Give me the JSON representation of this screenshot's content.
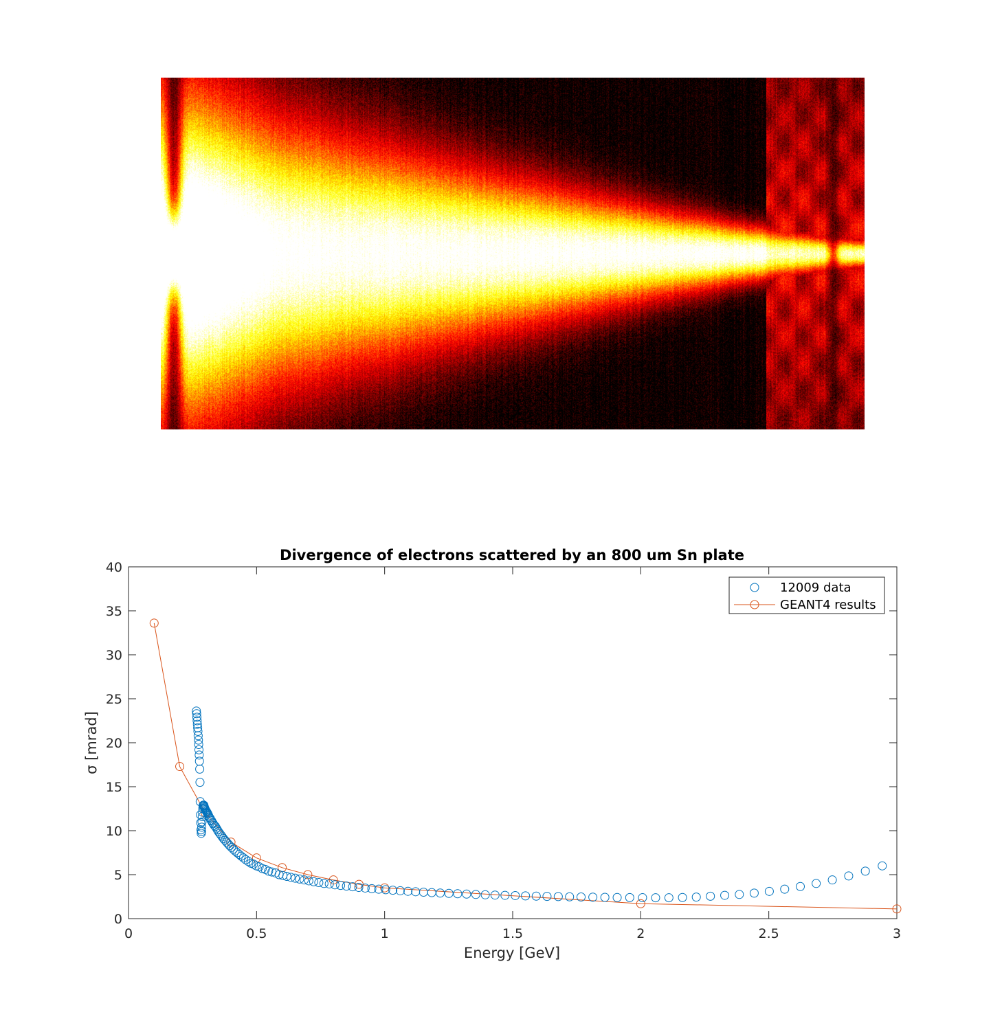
{
  "chart_data": [
    {
      "type": "heatmap",
      "colormap": "hot",
      "colorbar": false,
      "axes_visible": false,
      "description_profile": {
        "core_half_width_start": 0.42,
        "core_half_width_end": 0.035,
        "dark_band_centers": [
          0.018,
          0.955
        ],
        "fringe_region_start": 0.86
      }
    },
    {
      "type": "scatter",
      "title": "Divergence of electrons scattered by an 800 um Sn plate",
      "xlabel": "Energy [GeV]",
      "ylabel": "σ [mrad]",
      "xlim": [
        0,
        3
      ],
      "ylim": [
        0,
        40
      ],
      "xticks": [
        0,
        0.5,
        1,
        1.5,
        2,
        2.5,
        3
      ],
      "xtick_labels": [
        "0",
        "0.5",
        "1",
        "1.5",
        "2",
        "2.5",
        "3"
      ],
      "yticks": [
        0,
        5,
        10,
        15,
        20,
        25,
        30,
        35,
        40
      ],
      "ytick_labels": [
        "0",
        "5",
        "10",
        "15",
        "20",
        "25",
        "30",
        "35",
        "40"
      ],
      "grid": false,
      "box": true,
      "legend_position": "top-right",
      "series": [
        {
          "name": "12009 data",
          "style": "markers",
          "marker": "circle",
          "color": "#0072BD",
          "x": [
            0.265,
            0.266,
            0.267,
            0.268,
            0.269,
            0.27,
            0.271,
            0.272,
            0.273,
            0.274,
            0.275,
            0.276,
            0.277,
            0.278,
            0.279,
            0.28,
            0.281,
            0.282,
            0.283,
            0.284,
            0.285,
            0.286,
            0.287,
            0.288,
            0.289,
            0.29,
            0.291,
            0.292,
            0.293,
            0.294,
            0.295,
            0.296,
            0.297,
            0.298,
            0.3,
            0.302,
            0.304,
            0.306,
            0.308,
            0.31,
            0.313,
            0.316,
            0.319,
            0.322,
            0.325,
            0.328,
            0.331,
            0.335,
            0.339,
            0.343,
            0.347,
            0.351,
            0.356,
            0.361,
            0.366,
            0.371,
            0.377,
            0.383,
            0.389,
            0.395,
            0.402,
            0.409,
            0.416,
            0.424,
            0.432,
            0.44,
            0.449,
            0.458,
            0.468,
            0.478,
            0.488,
            0.499,
            0.51,
            0.522,
            0.534,
            0.547,
            0.56,
            0.574,
            0.588,
            0.603,
            0.618,
            0.634,
            0.651,
            0.668,
            0.686,
            0.704,
            0.723,
            0.743,
            0.763,
            0.784,
            0.806,
            0.828,
            0.851,
            0.875,
            0.899,
            0.924,
            0.95,
            0.977,
            1.004,
            1.032,
            1.061,
            1.091,
            1.121,
            1.152,
            1.184,
            1.217,
            1.251,
            1.285,
            1.32,
            1.356,
            1.393,
            1.431,
            1.47,
            1.51,
            1.55,
            1.592,
            1.634,
            1.678,
            1.722,
            1.767,
            1.813,
            1.86,
            1.908,
            1.957,
            2.007,
            2.058,
            2.11,
            2.163,
            2.217,
            2.272,
            2.328,
            2.385,
            2.443,
            2.502,
            2.562,
            2.623,
            2.685,
            2.748,
            2.812,
            2.877,
            2.943
          ],
          "y": [
            23.6,
            23.3,
            22.9,
            22.5,
            22.1,
            21.7,
            21.3,
            20.8,
            20.3,
            19.8,
            19.2,
            18.6,
            17.9,
            17.0,
            15.5,
            13.3,
            11.8,
            10.9,
            10.1,
            9.7,
            9.9,
            10.4,
            11.0,
            11.6,
            12.1,
            12.5,
            12.8,
            12.9,
            12.9,
            12.9,
            12.8,
            12.7,
            12.6,
            12.5,
            12.4,
            12.3,
            12.2,
            12.1,
            12.0,
            11.9,
            11.7,
            11.5,
            11.4,
            11.2,
            11.1,
            10.9,
            10.8,
            10.6,
            10.5,
            10.3,
            10.1,
            9.9,
            9.7,
            9.5,
            9.3,
            9.1,
            8.9,
            8.7,
            8.5,
            8.3,
            8.1,
            7.9,
            7.7,
            7.5,
            7.3,
            7.1,
            6.9,
            6.7,
            6.5,
            6.3,
            6.2,
            6.0,
            5.9,
            5.7,
            5.6,
            5.4,
            5.3,
            5.2,
            5.0,
            4.9,
            4.8,
            4.7,
            4.6,
            4.5,
            4.4,
            4.3,
            4.2,
            4.1,
            4.0,
            3.95,
            3.85,
            3.78,
            3.7,
            3.62,
            3.55,
            3.48,
            3.41,
            3.35,
            3.29,
            3.23,
            3.17,
            3.11,
            3.06,
            3.01,
            2.96,
            2.91,
            2.87,
            2.83,
            2.79,
            2.75,
            2.71,
            2.68,
            2.65,
            2.62,
            2.59,
            2.56,
            2.53,
            2.51,
            2.48,
            2.46,
            2.44,
            2.42,
            2.4,
            2.39,
            2.38,
            2.37,
            2.37,
            2.4,
            2.45,
            2.55,
            2.65,
            2.75,
            2.9,
            3.1,
            3.35,
            3.65,
            4.0,
            4.4,
            4.85,
            5.4,
            6.0
          ]
        },
        {
          "name": "GEANT4 results",
          "style": "line-markers",
          "marker": "circle",
          "color": "#D95319",
          "x": [
            0.1,
            0.2,
            0.3,
            0.4,
            0.5,
            0.6,
            0.7,
            0.8,
            0.9,
            1.0,
            2.0,
            3.0
          ],
          "y": [
            33.6,
            17.3,
            12.0,
            8.7,
            6.9,
            5.8,
            5.0,
            4.4,
            3.9,
            3.5,
            1.7,
            1.1
          ]
        }
      ]
    }
  ]
}
